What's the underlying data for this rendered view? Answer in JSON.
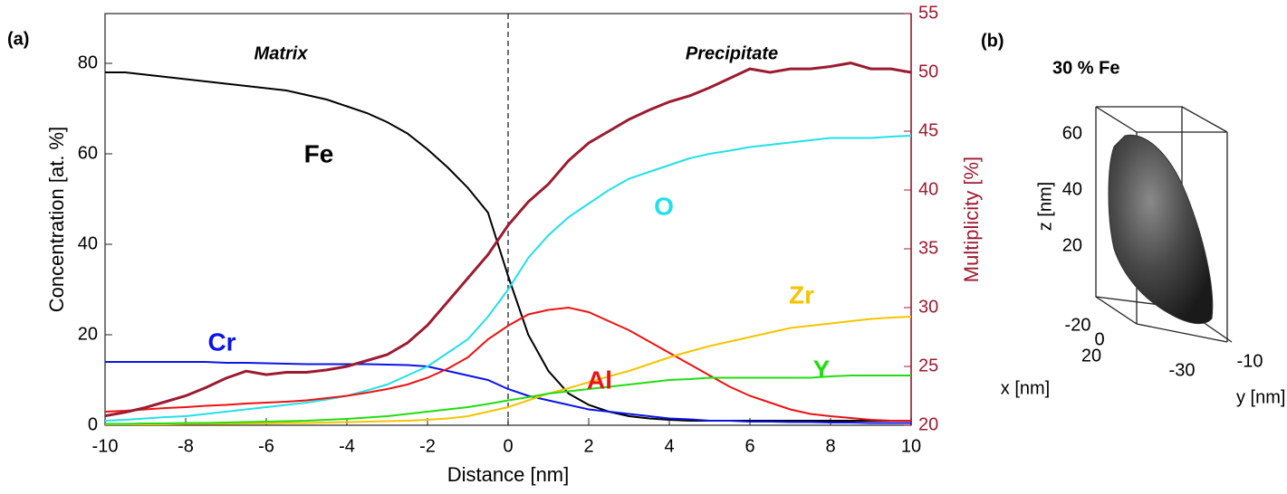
{
  "chart_data": {
    "type": "line",
    "panel_label": "(a)",
    "xlabel": "Distance [nm]",
    "ylabel": "Concentration [at. %]",
    "y2label": "Multiplicity [%]",
    "annotations": [
      "Matrix",
      "Precipitate"
    ],
    "reference_line_x": 0,
    "xlim": [
      -10,
      10
    ],
    "xticks": [
      -10,
      -8,
      -6,
      -4,
      -2,
      0,
      2,
      4,
      6,
      8,
      10
    ],
    "ylim": [
      0,
      91
    ],
    "yticks": [
      0,
      20,
      40,
      60,
      80
    ],
    "y2lim": [
      20,
      55
    ],
    "y2ticks": [
      20,
      25,
      30,
      35,
      40,
      45,
      50,
      55
    ],
    "y2color": "#9b1b30",
    "x": [
      -10,
      -9.5,
      -9,
      -8.5,
      -8,
      -7.5,
      -7,
      -6.5,
      -6,
      -5.5,
      -5,
      -4.5,
      -4,
      -3.5,
      -3,
      -2.5,
      -2,
      -1.5,
      -1,
      -0.5,
      0,
      0.5,
      1,
      1.5,
      2,
      2.5,
      3,
      3.5,
      4,
      4.5,
      5,
      5.5,
      6,
      6.5,
      7,
      7.5,
      8,
      8.5,
      9,
      9.5,
      10
    ],
    "series": [
      {
        "name": "Fe",
        "color": "#000000",
        "values": [
          78,
          78,
          77.5,
          77,
          76.5,
          76,
          75.5,
          75,
          74.5,
          74,
          73,
          72,
          70.5,
          69,
          67,
          64.5,
          61,
          57,
          52.5,
          47,
          33,
          20,
          12,
          7,
          4.5,
          3,
          2,
          1.5,
          1.2,
          1,
          1,
          1,
          1,
          1,
          1,
          1,
          1,
          1,
          1,
          1,
          1
        ]
      },
      {
        "name": "Cr",
        "color": "#0a14e6",
        "values": [
          14,
          14,
          14,
          14,
          14,
          14,
          13.8,
          13.8,
          13.7,
          13.6,
          13.5,
          13.5,
          13.5,
          13.5,
          13.4,
          13.3,
          13,
          12,
          11,
          10,
          8,
          6.5,
          5.5,
          4.5,
          3.5,
          3,
          2.5,
          2,
          1.5,
          1.3,
          1,
          1,
          0.8,
          0.8,
          0.7,
          0.7,
          0.6,
          0.6,
          0.5,
          0.5,
          0.5
        ]
      },
      {
        "name": "O",
        "color": "#22e0e8",
        "values": [
          1,
          1.2,
          1.5,
          1.8,
          2,
          2.5,
          3,
          3.5,
          4,
          4.5,
          5,
          5.7,
          6.5,
          7.7,
          9,
          11,
          13,
          16,
          19,
          24,
          30,
          37,
          42,
          46,
          49,
          52,
          54.5,
          56,
          57.5,
          59,
          60,
          60.7,
          61.5,
          62,
          62.5,
          63,
          63.5,
          63.5,
          63.5,
          63.8,
          64
        ]
      },
      {
        "name": "Al",
        "color": "#ee1111",
        "values": [
          3,
          3.2,
          3.5,
          3.8,
          4,
          4.3,
          4.5,
          4.8,
          5,
          5.2,
          5.5,
          6,
          6.5,
          7.2,
          8,
          9,
          10.5,
          12.5,
          15,
          19,
          22,
          24.5,
          25.5,
          26,
          25,
          23,
          21,
          18.5,
          16,
          13.5,
          11,
          8.5,
          6.5,
          5,
          3.5,
          2.5,
          2,
          1.6,
          1.2,
          1,
          1
        ]
      },
      {
        "name": "Zr",
        "color": "#f5c400",
        "values": [
          0.2,
          0.2,
          0.2,
          0.2,
          0.3,
          0.3,
          0.3,
          0.4,
          0.4,
          0.5,
          0.5,
          0.6,
          0.7,
          0.8,
          0.9,
          1,
          1.2,
          1.5,
          2,
          3,
          4,
          5.5,
          7,
          8.2,
          9.5,
          10.8,
          12,
          13.5,
          15,
          16.3,
          17.5,
          18.5,
          19.5,
          20.5,
          21.5,
          22,
          22.5,
          23,
          23.5,
          23.8,
          24
        ]
      },
      {
        "name": "Y",
        "color": "#22dd11",
        "values": [
          0.3,
          0.3,
          0.4,
          0.4,
          0.5,
          0.5,
          0.6,
          0.7,
          0.8,
          0.9,
          1,
          1.2,
          1.4,
          1.7,
          2,
          2.5,
          3,
          3.5,
          4,
          4.7,
          5.5,
          6.2,
          7,
          7.5,
          8,
          8.5,
          9,
          9.5,
          10,
          10.2,
          10.5,
          10.5,
          10.5,
          10.5,
          10.5,
          10.5,
          10.8,
          11,
          11,
          11,
          11
        ]
      },
      {
        "color": "#9b1b30",
        "axis": "y2",
        "values": [
          20.8,
          21.1,
          21.5,
          22,
          22.5,
          23.2,
          24,
          24.6,
          24.3,
          24.5,
          24.5,
          24.7,
          25,
          25.5,
          26,
          27,
          28.5,
          30.5,
          32.5,
          34.5,
          37,
          39,
          40.5,
          42.5,
          44,
          45,
          46,
          46.8,
          47.5,
          48,
          48.7,
          49.5,
          50.3,
          50,
          50.3,
          50.3,
          50.5,
          50.8,
          50.3,
          50.3,
          50
        ]
      }
    ]
  },
  "panel_b": {
    "panel_label": "(b)",
    "title": "30 % Fe",
    "zlabel": "z [nm]",
    "xlabel": "x [nm]",
    "ylabel": "y [nm]",
    "zticks": [
      "60",
      "40",
      "20"
    ],
    "xticks": [
      "-20",
      "0",
      "20"
    ],
    "yticks": [
      "-30",
      "-10"
    ]
  }
}
